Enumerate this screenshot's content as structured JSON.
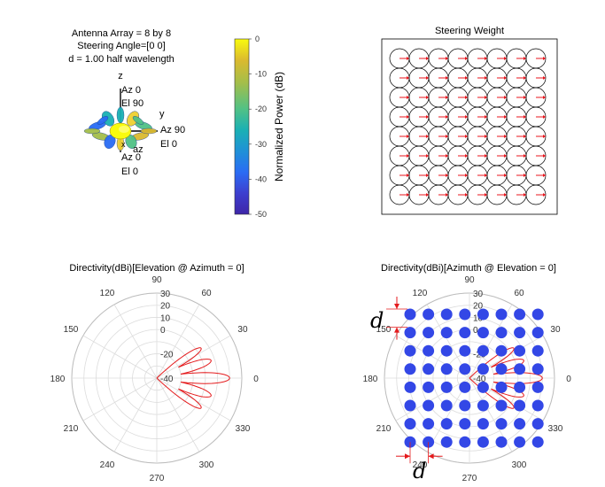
{
  "chart_data": [
    {
      "id": "pattern3d",
      "type": "surface-3d",
      "title_lines": [
        "Antenna Array = 8 by 8",
        "Steering Angle=[0 0]",
        "d = 1.00 half wavelength"
      ],
      "axes": {
        "z": {
          "label": "z",
          "az": "Az 0",
          "el": "El 90"
        },
        "y": {
          "label": "y",
          "az": "Az 90",
          "el": "El 0"
        },
        "x": {
          "label": "x",
          "az": "Az 0",
          "el": "El 0"
        },
        "az_label": "az"
      },
      "colorbar": {
        "label": "Normalized Power (dB)",
        "ticks": [
          "0",
          "-10",
          "-20",
          "-30",
          "-40",
          "-50"
        ],
        "range": [
          -50,
          0
        ],
        "colormap": [
          "#f9fb0e",
          "#dbba2f",
          "#a4be4a",
          "#51c186",
          "#1ab0b4",
          "#1f91d7",
          "#2a6cf4",
          "#3d3fcf",
          "#3e26a8"
        ]
      }
    },
    {
      "id": "steering",
      "type": "quiver-grid",
      "title": "Steering Weight",
      "rows": 8,
      "cols": 8,
      "arrow_angle_deg": 0,
      "arrow_color": "#e8141c",
      "circle_color": "#000000"
    },
    {
      "id": "polar-elev",
      "type": "polar",
      "title": "Directivity(dBi)[Elevation @ Azimuth = 0]",
      "angle_labels": [
        "0",
        "30",
        "60",
        "90",
        "120",
        "150",
        "180",
        "210",
        "240",
        "270",
        "300",
        "330"
      ],
      "radial_ticks": [
        "30",
        "20",
        "10",
        "0",
        "-20",
        "-40"
      ],
      "radial_range": [
        -40,
        30
      ],
      "line_color": "#e41a1c",
      "series": [
        {
          "lobe_center_deg": 0,
          "peak_dBi": 20,
          "halfwidth_deg": 7
        },
        {
          "lobe_center_deg": 18,
          "peak_dBi": 7,
          "halfwidth_deg": 7
        },
        {
          "lobe_center_deg": -18,
          "peak_dBi": 7,
          "halfwidth_deg": 7
        },
        {
          "lobe_center_deg": 34,
          "peak_dBi": 4,
          "halfwidth_deg": 6
        },
        {
          "lobe_center_deg": -34,
          "peak_dBi": 4,
          "halfwidth_deg": 6
        }
      ]
    },
    {
      "id": "polar-azim",
      "type": "polar",
      "title": "Directivity(dBi)[Azimuth @ Elevation = 0]",
      "angle_labels": [
        "0",
        "30",
        "60",
        "90",
        "120",
        "150",
        "180",
        "210",
        "240",
        "270",
        "300",
        "330"
      ],
      "radial_ticks": [
        "30",
        "20",
        "10",
        "0",
        "-20",
        "-40"
      ],
      "radial_range": [
        -40,
        30
      ],
      "line_color": "#e41a1c",
      "overlay": {
        "rows": 8,
        "cols": 8,
        "dot_color": "#3347e6",
        "spacing_label": "d",
        "arrow_color": "#e41a1c"
      }
    }
  ]
}
